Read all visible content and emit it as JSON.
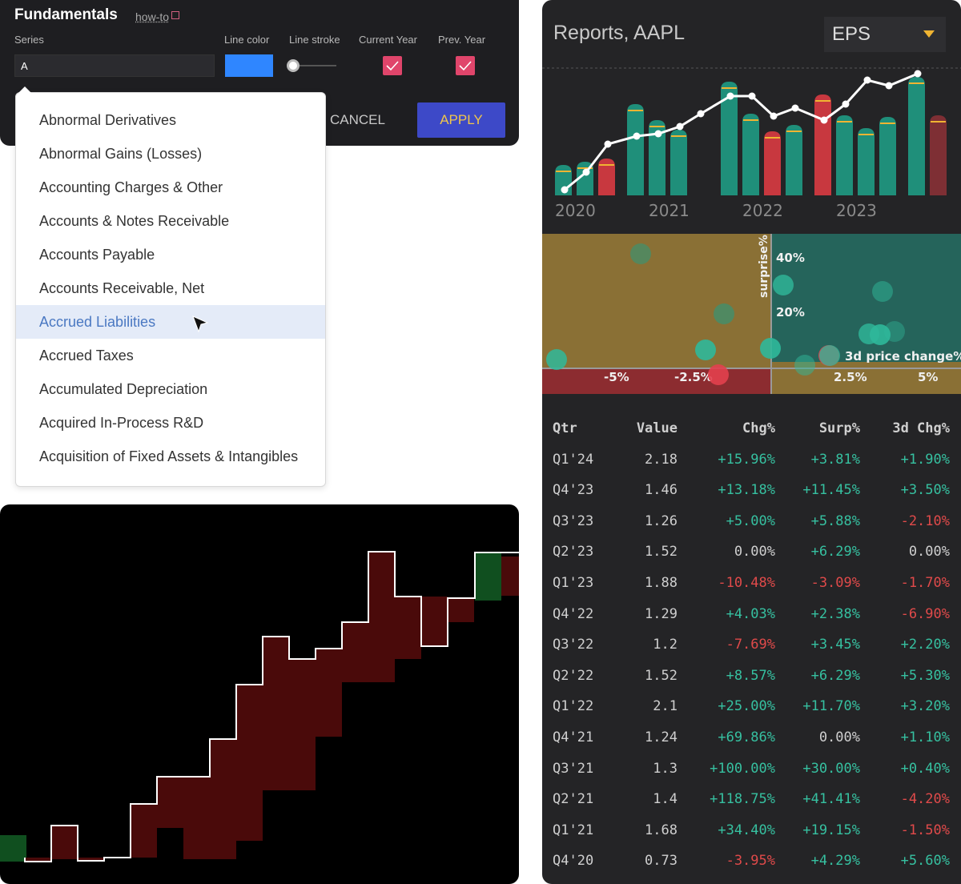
{
  "fundamentals": {
    "title": "Fundamentals",
    "howto_label": "how-to",
    "series_label": "Series",
    "series_value": "A",
    "line_color_label": "Line color",
    "line_color": "#2f86ff",
    "line_stroke_label": "Line stroke",
    "current_year_label": "Current Year",
    "current_year_checked": true,
    "prev_year_label": "Prev. Year",
    "prev_year_checked": true,
    "cancel_label": "CANCEL",
    "apply_label": "APPLY"
  },
  "dropdown": {
    "items": [
      "Abnormal Derivatives",
      "Abnormal Gains (Losses)",
      "Accounting Charges & Other",
      "Accounts & Notes Receivable",
      "Accounts Payable",
      "Accounts Receivable, Net",
      "Accrued Liabilities",
      "Accrued Taxes",
      "Accumulated Depreciation",
      "Acquired In-Process R&D",
      "Acquisition of Fixed Assets & Intangibles"
    ],
    "selected_index": 6
  },
  "reports": {
    "title": "Reports, AAPL",
    "metric": "EPS",
    "year_labels": [
      "2020",
      "2021",
      "2022",
      "2023"
    ],
    "scatter": {
      "y_axis_label": "surprise%",
      "x_axis_label": "3d price change%",
      "y_ticks": [
        "40%",
        "20%"
      ],
      "x_ticks": [
        "-5%",
        "-2.5%",
        "2.5%",
        "5%"
      ]
    },
    "table": {
      "headers": [
        "Qtr",
        "Value",
        "Chg%",
        "Surp%",
        "3d Chg%"
      ],
      "rows": [
        [
          "Q1'24",
          "2.18",
          "+15.96%",
          "+3.81%",
          "+1.90%"
        ],
        [
          "Q4'23",
          "1.46",
          "+13.18%",
          "+11.45%",
          "+3.50%"
        ],
        [
          "Q3'23",
          "1.26",
          "+5.00%",
          "+5.88%",
          "-2.10%"
        ],
        [
          "Q2'23",
          "1.52",
          "0.00%",
          "+6.29%",
          "0.00%"
        ],
        [
          "Q1'23",
          "1.88",
          "-10.48%",
          "-3.09%",
          "-1.70%"
        ],
        [
          "Q4'22",
          "1.29",
          "+4.03%",
          "+2.38%",
          "-6.90%"
        ],
        [
          "Q3'22",
          "1.2",
          "-7.69%",
          "+3.45%",
          "+2.20%"
        ],
        [
          "Q2'22",
          "1.52",
          "+8.57%",
          "+6.29%",
          "+5.30%"
        ],
        [
          "Q1'22",
          "2.1",
          "+25.00%",
          "+11.70%",
          "+3.20%"
        ],
        [
          "Q4'21",
          "1.24",
          "+69.86%",
          "0.00%",
          "+1.10%"
        ],
        [
          "Q3'21",
          "1.3",
          "+100.00%",
          "+30.00%",
          "+0.40%"
        ],
        [
          "Q2'21",
          "1.4",
          "+118.75%",
          "+41.41%",
          "-4.20%"
        ],
        [
          "Q1'21",
          "1.68",
          "+34.40%",
          "+19.15%",
          "-1.50%"
        ],
        [
          "Q4'20",
          "0.73",
          "-3.95%",
          "+4.29%",
          "+5.60%"
        ]
      ]
    }
  },
  "colors": {
    "positive": "#36c0a0",
    "negative": "#e04a4a",
    "bar_up": "#1f8f7a",
    "bar_down": "#c8383f",
    "estimate_tick": "#f0b432",
    "step_up": "#104f1f",
    "step_down": "#4a0a0a"
  }
}
